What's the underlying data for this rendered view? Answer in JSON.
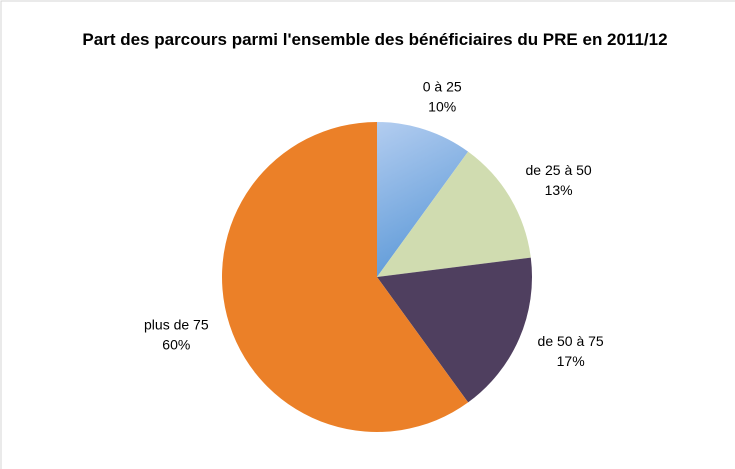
{
  "chart_data": {
    "type": "pie",
    "title": "Part des parcours parmi l'ensemble des bénéficiaires du PRE en 2011/12",
    "categories": [
      "0 à 25",
      "de 25 à 50",
      "de 50 à 75",
      "plus de 75"
    ],
    "values": [
      10,
      13,
      17,
      60
    ],
    "value_labels": [
      "10%",
      "13%",
      "17%",
      "60%"
    ],
    "colors": [
      "#8fb4e3",
      "#d0dcb0",
      "#4f3f5f",
      "#eb8028"
    ]
  }
}
